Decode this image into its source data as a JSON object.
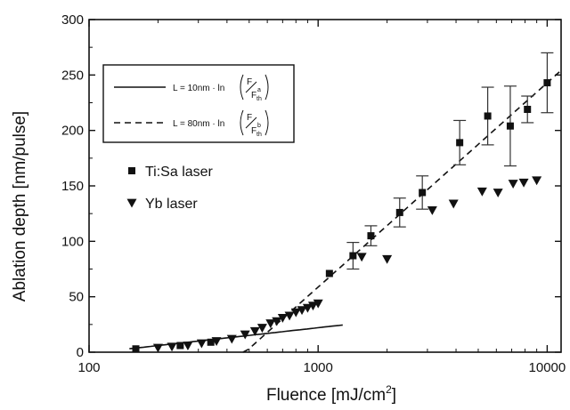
{
  "chart_data": {
    "type": "scatter",
    "title": "",
    "xlabel": "Fluence [mJ/cm",
    "xlabel_sup": "2",
    "xlabel_close": "]",
    "ylabel": "Ablation depth [nm/pulse]",
    "xscale": "log",
    "xlim": [
      100,
      11500
    ],
    "ylim": [
      0,
      300
    ],
    "xticks": [
      {
        "value": 100,
        "label": "100"
      },
      {
        "value": 1000,
        "label": "1000"
      },
      {
        "value": 10000,
        "label": "10000"
      }
    ],
    "yticks": [
      {
        "value": 0,
        "label": "0"
      },
      {
        "value": 50,
        "label": "50"
      },
      {
        "value": 100,
        "label": "100"
      },
      {
        "value": 150,
        "label": "150"
      },
      {
        "value": 200,
        "label": "200"
      },
      {
        "value": 250,
        "label": "250"
      },
      {
        "value": 300,
        "label": "300"
      }
    ],
    "series": [
      {
        "name": "Ti:Sa laser",
        "marker": "square",
        "color": "#111111",
        "points": [
          {
            "x": 160,
            "y": 3
          },
          {
            "x": 250,
            "y": 6
          },
          {
            "x": 340,
            "y": 9
          },
          {
            "x": 1120,
            "y": 71
          },
          {
            "x": 1420,
            "y": 87,
            "err": 12
          },
          {
            "x": 1700,
            "y": 105,
            "err": 9
          },
          {
            "x": 2270,
            "y": 126,
            "err": 13
          },
          {
            "x": 2850,
            "y": 144,
            "err": 15
          },
          {
            "x": 4150,
            "y": 189,
            "err": 20
          },
          {
            "x": 5500,
            "y": 213,
            "err": 26
          },
          {
            "x": 6900,
            "y": 204,
            "err": 36
          },
          {
            "x": 8200,
            "y": 219,
            "err": 12
          },
          {
            "x": 10000,
            "y": 243,
            "err": 27
          }
        ]
      },
      {
        "name": "Yb laser",
        "marker": "triangle-down",
        "color": "#111111",
        "points": [
          {
            "x": 200,
            "y": 4
          },
          {
            "x": 230,
            "y": 5
          },
          {
            "x": 270,
            "y": 6
          },
          {
            "x": 310,
            "y": 8
          },
          {
            "x": 360,
            "y": 10
          },
          {
            "x": 420,
            "y": 12
          },
          {
            "x": 480,
            "y": 16
          },
          {
            "x": 530,
            "y": 19
          },
          {
            "x": 570,
            "y": 22
          },
          {
            "x": 620,
            "y": 26
          },
          {
            "x": 660,
            "y": 28
          },
          {
            "x": 700,
            "y": 31
          },
          {
            "x": 750,
            "y": 33
          },
          {
            "x": 800,
            "y": 36
          },
          {
            "x": 850,
            "y": 38
          },
          {
            "x": 900,
            "y": 40
          },
          {
            "x": 950,
            "y": 42
          },
          {
            "x": 1000,
            "y": 44
          },
          {
            "x": 1550,
            "y": 86
          },
          {
            "x": 2000,
            "y": 84
          },
          {
            "x": 3150,
            "y": 128
          },
          {
            "x": 3900,
            "y": 134
          },
          {
            "x": 5200,
            "y": 145
          },
          {
            "x": 6100,
            "y": 144
          },
          {
            "x": 7100,
            "y": 152
          },
          {
            "x": 7900,
            "y": 153
          },
          {
            "x": 9000,
            "y": 155
          }
        ]
      }
    ],
    "fit_lines": [
      {
        "name": "L = 10nm · ln(F/F_th^a)",
        "style": "solid",
        "slope_nm": 10,
        "threshold": 110,
        "x_range": [
          150,
          1280
        ]
      },
      {
        "name": "L = 80nm · ln(F/F_th^b)",
        "style": "dashed",
        "slope_nm": 80,
        "threshold": 480,
        "x_range": [
          470,
          11500
        ]
      }
    ],
    "legend_box": {
      "placement": "top-left",
      "entries": [
        {
          "style": "solid",
          "prefix": "L = 10nm · ln",
          "num": "F",
          "den": "F",
          "den_sub": "th",
          "den_sup": "a"
        },
        {
          "style": "dashed",
          "prefix": "L = 80nm · ln",
          "num": "F",
          "den": "F",
          "den_sub": "th",
          "den_sup": "b"
        }
      ]
    },
    "marker_legend": [
      {
        "label": "Ti:Sa laser",
        "marker": "square"
      },
      {
        "label": "Yb laser",
        "marker": "triangle-down"
      }
    ]
  }
}
